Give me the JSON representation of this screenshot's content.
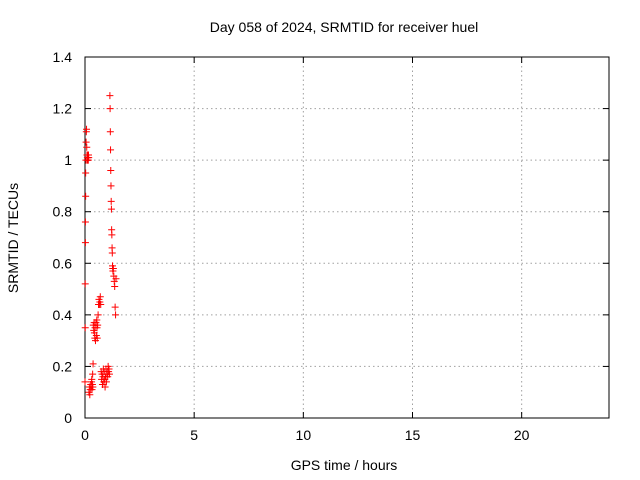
{
  "chart_data": {
    "type": "scatter",
    "title": "Day 058 of 2024, SRMTID for receiver huel",
    "xlabel": "GPS time / hours",
    "ylabel": "SRMTID / TECUs",
    "xlim": [
      0,
      24
    ],
    "ylim": [
      0,
      1.4
    ],
    "x_ticks": [
      0,
      5,
      10,
      15,
      20
    ],
    "x_tick_labels": [
      "0",
      "5",
      "10",
      "15",
      "20"
    ],
    "y_ticks": [
      0,
      0.2,
      0.4,
      0.6,
      0.8,
      1.0,
      1.2,
      1.4
    ],
    "y_tick_labels": [
      "0",
      "0.2",
      "0.4",
      "0.6",
      "0.8",
      "1",
      "1.2",
      "1.4"
    ],
    "grid": true,
    "marker": "plus",
    "marker_color": "#ff0000",
    "points": [
      [
        0.0,
        0.14
      ],
      [
        0.01,
        0.35
      ],
      [
        0.01,
        0.52
      ],
      [
        0.02,
        0.68
      ],
      [
        0.02,
        0.76
      ],
      [
        0.03,
        0.86
      ],
      [
        0.03,
        0.95
      ],
      [
        0.04,
        1.0
      ],
      [
        0.05,
        1.07
      ],
      [
        0.06,
        1.11
      ],
      [
        0.07,
        1.12
      ],
      [
        0.08,
        1.05
      ],
      [
        0.09,
        1.02
      ],
      [
        0.1,
        1.0
      ],
      [
        0.11,
        1.01
      ],
      [
        0.12,
        1.02
      ],
      [
        0.13,
        1.0
      ],
      [
        0.14,
        1.01
      ],
      [
        0.15,
        1.0
      ],
      [
        0.16,
        1.02
      ],
      [
        0.17,
        1.01
      ],
      [
        0.18,
        0.1
      ],
      [
        0.2,
        0.12
      ],
      [
        0.22,
        0.09
      ],
      [
        0.24,
        0.11
      ],
      [
        0.26,
        0.13
      ],
      [
        0.28,
        0.12
      ],
      [
        0.3,
        0.14
      ],
      [
        0.31,
        0.15
      ],
      [
        0.32,
        0.11
      ],
      [
        0.34,
        0.13
      ],
      [
        0.35,
        0.17
      ],
      [
        0.36,
        0.12
      ],
      [
        0.37,
        0.21
      ],
      [
        0.38,
        0.36
      ],
      [
        0.4,
        0.34
      ],
      [
        0.42,
        0.37
      ],
      [
        0.43,
        0.33
      ],
      [
        0.45,
        0.31
      ],
      [
        0.46,
        0.35
      ],
      [
        0.48,
        0.3
      ],
      [
        0.5,
        0.37
      ],
      [
        0.52,
        0.32
      ],
      [
        0.54,
        0.38
      ],
      [
        0.55,
        0.35
      ],
      [
        0.56,
        0.31
      ],
      [
        0.58,
        0.36
      ],
      [
        0.6,
        0.4
      ],
      [
        0.62,
        0.44
      ],
      [
        0.64,
        0.46
      ],
      [
        0.66,
        0.44
      ],
      [
        0.68,
        0.45
      ],
      [
        0.7,
        0.47
      ],
      [
        0.72,
        0.44
      ],
      [
        0.74,
        0.18
      ],
      [
        0.76,
        0.15
      ],
      [
        0.78,
        0.17
      ],
      [
        0.8,
        0.13
      ],
      [
        0.82,
        0.16
      ],
      [
        0.84,
        0.19
      ],
      [
        0.86,
        0.14
      ],
      [
        0.88,
        0.18
      ],
      [
        0.9,
        0.15
      ],
      [
        0.92,
        0.12
      ],
      [
        0.94,
        0.16
      ],
      [
        0.96,
        0.19
      ],
      [
        0.98,
        0.14
      ],
      [
        1.0,
        0.17
      ],
      [
        1.02,
        0.18
      ],
      [
        1.04,
        0.16
      ],
      [
        1.06,
        0.2
      ],
      [
        1.08,
        0.18
      ],
      [
        1.1,
        0.19
      ],
      [
        1.12,
        0.17
      ],
      [
        1.14,
        1.25
      ],
      [
        1.15,
        1.2
      ],
      [
        1.16,
        1.11
      ],
      [
        1.17,
        1.04
      ],
      [
        1.18,
        0.96
      ],
      [
        1.19,
        0.9
      ],
      [
        1.2,
        0.84
      ],
      [
        1.21,
        0.81
      ],
      [
        1.22,
        0.73
      ],
      [
        1.23,
        0.71
      ],
      [
        1.24,
        0.66
      ],
      [
        1.25,
        0.64
      ],
      [
        1.26,
        0.59
      ],
      [
        1.27,
        0.58
      ],
      [
        1.28,
        0.57
      ],
      [
        1.3,
        0.58
      ],
      [
        1.32,
        0.55
      ],
      [
        1.34,
        0.53
      ],
      [
        1.36,
        0.51
      ],
      [
        1.38,
        0.43
      ],
      [
        1.4,
        0.4
      ],
      [
        1.42,
        0.54
      ]
    ]
  }
}
